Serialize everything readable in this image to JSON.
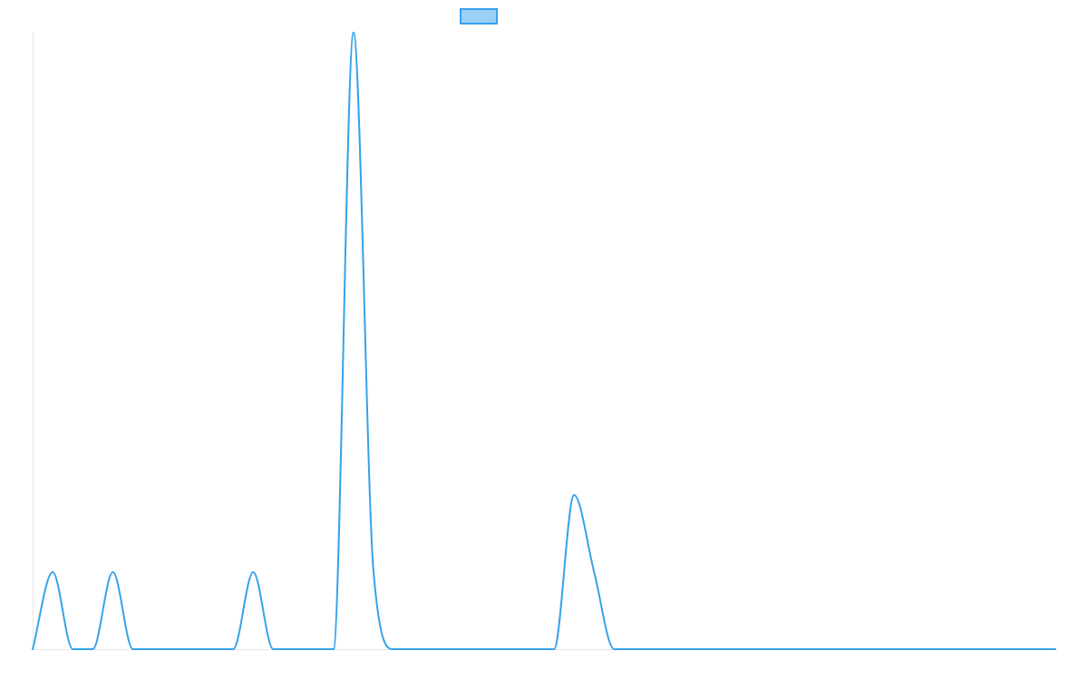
{
  "chart_data": {
    "type": "line",
    "title": "",
    "xlabel": "",
    "ylabel": "",
    "ylim": [
      0,
      8
    ],
    "legend": {
      "placement": "top-center",
      "label": ""
    },
    "series": [
      {
        "color": "#36a2eb",
        "fill": "#9ad0f5",
        "values": [
          0,
          1,
          0,
          0,
          1,
          0,
          0,
          0,
          0,
          0,
          0,
          1,
          0,
          0,
          0,
          0,
          8,
          1,
          0,
          0,
          0,
          0,
          0,
          0,
          0,
          0,
          0,
          2,
          1,
          0,
          0,
          0,
          0,
          0,
          0,
          0,
          0,
          0,
          0,
          0,
          0,
          0,
          0,
          0,
          0,
          0,
          0,
          0,
          0,
          0,
          0,
          0
        ]
      }
    ]
  }
}
